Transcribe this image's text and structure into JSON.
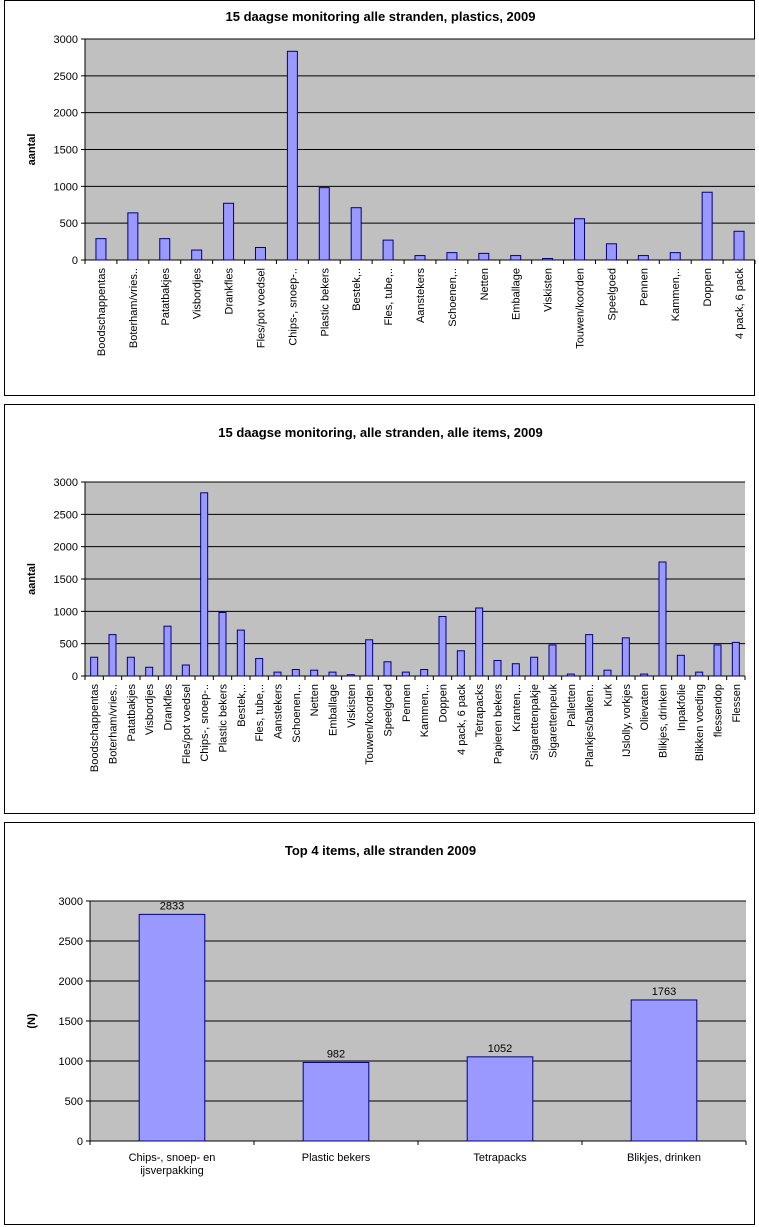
{
  "chart_data": [
    {
      "type": "bar",
      "title": "15 daagse monitoring alle stranden, plastics, 2009",
      "xlabel": "",
      "ylabel": "aantal",
      "ylim": [
        0,
        3000
      ],
      "yticks": [
        0,
        500,
        1000,
        1500,
        2000,
        2500,
        3000
      ],
      "grid": true,
      "categories": [
        "Boodschappentas",
        "Boterham/vries..",
        "Patatbakjes",
        "Visbordjes",
        "Drankfles",
        "Fles/pot voedsel",
        "Chips-, snoep-..",
        "Plastic bekers",
        "Bestek,..",
        "Fles, tube,..",
        "Aanstekers",
        "Schoenen,..",
        "Netten",
        "Emballage",
        "Viskisten",
        "Touwen/koorden",
        "Speelgoed",
        "Pennen",
        "Kammen,..",
        "Doppen",
        "4 pack, 6 pack"
      ],
      "values": [
        290,
        640,
        290,
        135,
        770,
        170,
        2833,
        982,
        710,
        270,
        60,
        100,
        90,
        60,
        20,
        560,
        220,
        60,
        100,
        920,
        390
      ]
    },
    {
      "type": "bar",
      "title": "15 daagse monitoring, alle stranden, alle items, 2009",
      "xlabel": "",
      "ylabel": "aantal",
      "ylim": [
        0,
        3000
      ],
      "yticks": [
        0,
        500,
        1000,
        1500,
        2000,
        2500,
        3000
      ],
      "grid": true,
      "categories": [
        "Boodschappentas",
        "Boterham/vries..",
        "Patatbakjes",
        "Visbordjes",
        "Drankfles",
        "Fles/pot voedsel",
        "Chips-, snoep-..",
        "Plastic bekers",
        "Bestek,..",
        "Fles, tube,..",
        "Aanstekers",
        "Schoenen,..",
        "Netten",
        "Emballage",
        "Viskisten",
        "Touwen/koorden",
        "Speelgoed",
        "Pennen",
        "Kammen,..",
        "Doppen",
        "4 pack, 6 pack",
        "Tetrapacks",
        "Papieren bekers",
        "Kranten,..",
        "Sigarettenpakje",
        "Sigarettenpeuk",
        "Palletten",
        "Plankjes/balken..",
        "Kurk",
        "IJslolly, vorkjes",
        "Olievaten",
        "Blikjes, drinken",
        "Inpakfolie",
        "Blikken voeding",
        "flessendop",
        "Flessen"
      ],
      "values": [
        290,
        640,
        290,
        135,
        770,
        170,
        2833,
        982,
        710,
        270,
        60,
        100,
        90,
        60,
        20,
        560,
        220,
        60,
        100,
        920,
        390,
        1052,
        240,
        190,
        290,
        480,
        30,
        640,
        90,
        590,
        30,
        1763,
        320,
        60,
        480,
        520
      ]
    },
    {
      "type": "bar",
      "title": "Top 4 items, alle stranden 2009",
      "xlabel": "",
      "ylabel": "(N)",
      "ylim": [
        0,
        3000
      ],
      "yticks": [
        0,
        500,
        1000,
        1500,
        2000,
        2500,
        3000
      ],
      "grid": true,
      "data_labels": true,
      "categories": [
        "Chips-, snoep- en ijsverpakking",
        "Plastic bekers",
        "Tetrapacks",
        "Blikjes, drinken"
      ],
      "values": [
        2833,
        982,
        1052,
        1763
      ]
    }
  ],
  "colors": {
    "plot_bg": "#c0c0c0",
    "bar_fill": "#9999ff",
    "bar_stroke": "#000080",
    "gridline": "#000000"
  }
}
